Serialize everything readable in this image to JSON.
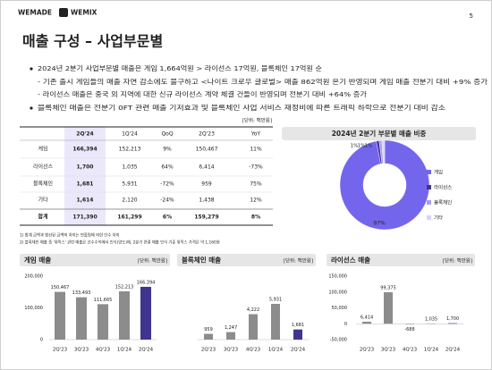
{
  "header": {
    "logos": [
      "WEMADE",
      "WEMIX"
    ],
    "page_number": "5"
  },
  "title": "매출 구성 – 사업부문별",
  "bullets": [
    "2024년 2분기 사업부문별 매출은 게임 1,664억원 > 라이선스 17억원, 블록체인 17억원 순",
    "- 기존 출시 게임들의 매출 자연 감소에도 불구하고 <나이트 크로우 글로벌> 매출 862억원 온기 반영되며 게임 매출 전분기 대비 +9% 증가",
    "- 라이선스 매출은 중국 외 지역에 대한 신규 라이선스 계약 체결 건들이 반영되며 전분기 대비 +64% 증가",
    "블록체인 매출은 전분기 0FT 관련 매출 기저효과 및 블록체인 사업 서비스 재정비에 따른 트래픽 하락으로 전분기 대비 감소"
  ],
  "table": {
    "unit": "[단위: 백만원]",
    "columns": [
      "2Q'24",
      "1Q'24",
      "QoQ",
      "2Q'23",
      "YoY"
    ],
    "rows": [
      [
        "게임",
        "166,394",
        "152,213",
        "9%",
        "150,467",
        "11%"
      ],
      [
        "라이선스",
        "1,700",
        "1,035",
        "64%",
        "6,414",
        "-73%"
      ],
      [
        "블록체인",
        "1,681",
        "5,931",
        "-72%",
        "959",
        "75%"
      ],
      [
        "기타",
        "1,614",
        "2,120",
        "-24%",
        "1,438",
        "12%"
      ],
      [
        "합계",
        "171,390",
        "161,299",
        "6%",
        "159,279",
        "8%"
      ]
    ]
  },
  "footnotes": [
    "1) 합계 금액과 합산된 금액의 차이는 반올림에 의한 단수 차이",
    "2) 블록체인 매출 중 '위믹스' 관련 매출은 선수수익에서 인식(양도)에, 2분기 연결 매출 인식 기준 위믹스 가격은 약 1,160원"
  ],
  "chart_data": [
    {
      "type": "pie",
      "title": "2024년 2분기 부문별 매출 비중",
      "categories": [
        "게임",
        "라이선스",
        "블록체인",
        "기타"
      ],
      "values": [
        97,
        1,
        1,
        1
      ],
      "value_labels": [
        "97%",
        "1%",
        "1%",
        "1%"
      ],
      "colors": [
        "#7466ec",
        "#3f3398",
        "#a79ef4",
        "#d8d3fb"
      ]
    },
    {
      "type": "bar",
      "title": "게임 매출",
      "unit": "[단위: 백만원]",
      "categories": [
        "2Q'23",
        "3Q'23",
        "4Q'23",
        "1Q'24",
        "2Q'24"
      ],
      "values": [
        150467,
        133493,
        111665,
        152213,
        166394
      ],
      "value_labels": [
        "150,467",
        "133,493",
        "111,665",
        "152,213",
        "166,394"
      ],
      "colors": [
        "#8c8c8c",
        "#8c8c8c",
        "#8c8c8c",
        "#8c8c8c",
        "#3f3590"
      ],
      "ylim": [
        0,
        200000
      ],
      "yticks": [
        0,
        {
          "value": 100000,
          "label": "100,000"
        },
        {
          "value": 200000,
          "label": "200,000"
        }
      ]
    },
    {
      "type": "bar",
      "title": "블록체인 매출",
      "unit": "[단위: 백만원]",
      "categories": [
        "2Q'23",
        "3Q'23",
        "4Q'23",
        "1Q'24",
        "2Q'24"
      ],
      "values": [
        959,
        1247,
        4222,
        5931,
        1681
      ],
      "value_labels": [
        "959",
        "1,247",
        "4,222",
        "5,931",
        "1,681"
      ],
      "colors": [
        "#8c8c8c",
        "#8c8c8c",
        "#8c8c8c",
        "#8c8c8c",
        "#3f3590"
      ]
    },
    {
      "type": "bar",
      "title": "라이선스 매출",
      "unit": "[단위: 백만원]",
      "categories": [
        "2Q'23",
        "3Q'23",
        "4Q'23",
        "1Q'24",
        "2Q'24"
      ],
      "values": [
        6414,
        99375,
        -688,
        1035,
        1700
      ],
      "value_labels": [
        "6,414",
        "99,375",
        "-688",
        "1,035",
        "1,700"
      ],
      "colors": [
        "#8c8c8c",
        "#8c8c8c",
        "#8c8c8c",
        "#8c8c8c",
        "#3f3590"
      ],
      "ylim": [
        -50000,
        150000
      ],
      "yticks": [
        {
          "value": -50000,
          "label": "-50,000"
        },
        0,
        {
          "value": 50000,
          "label": "50,000"
        },
        {
          "value": 100000,
          "label": "100,000"
        },
        {
          "value": 150000,
          "label": "150,000"
        }
      ]
    }
  ]
}
